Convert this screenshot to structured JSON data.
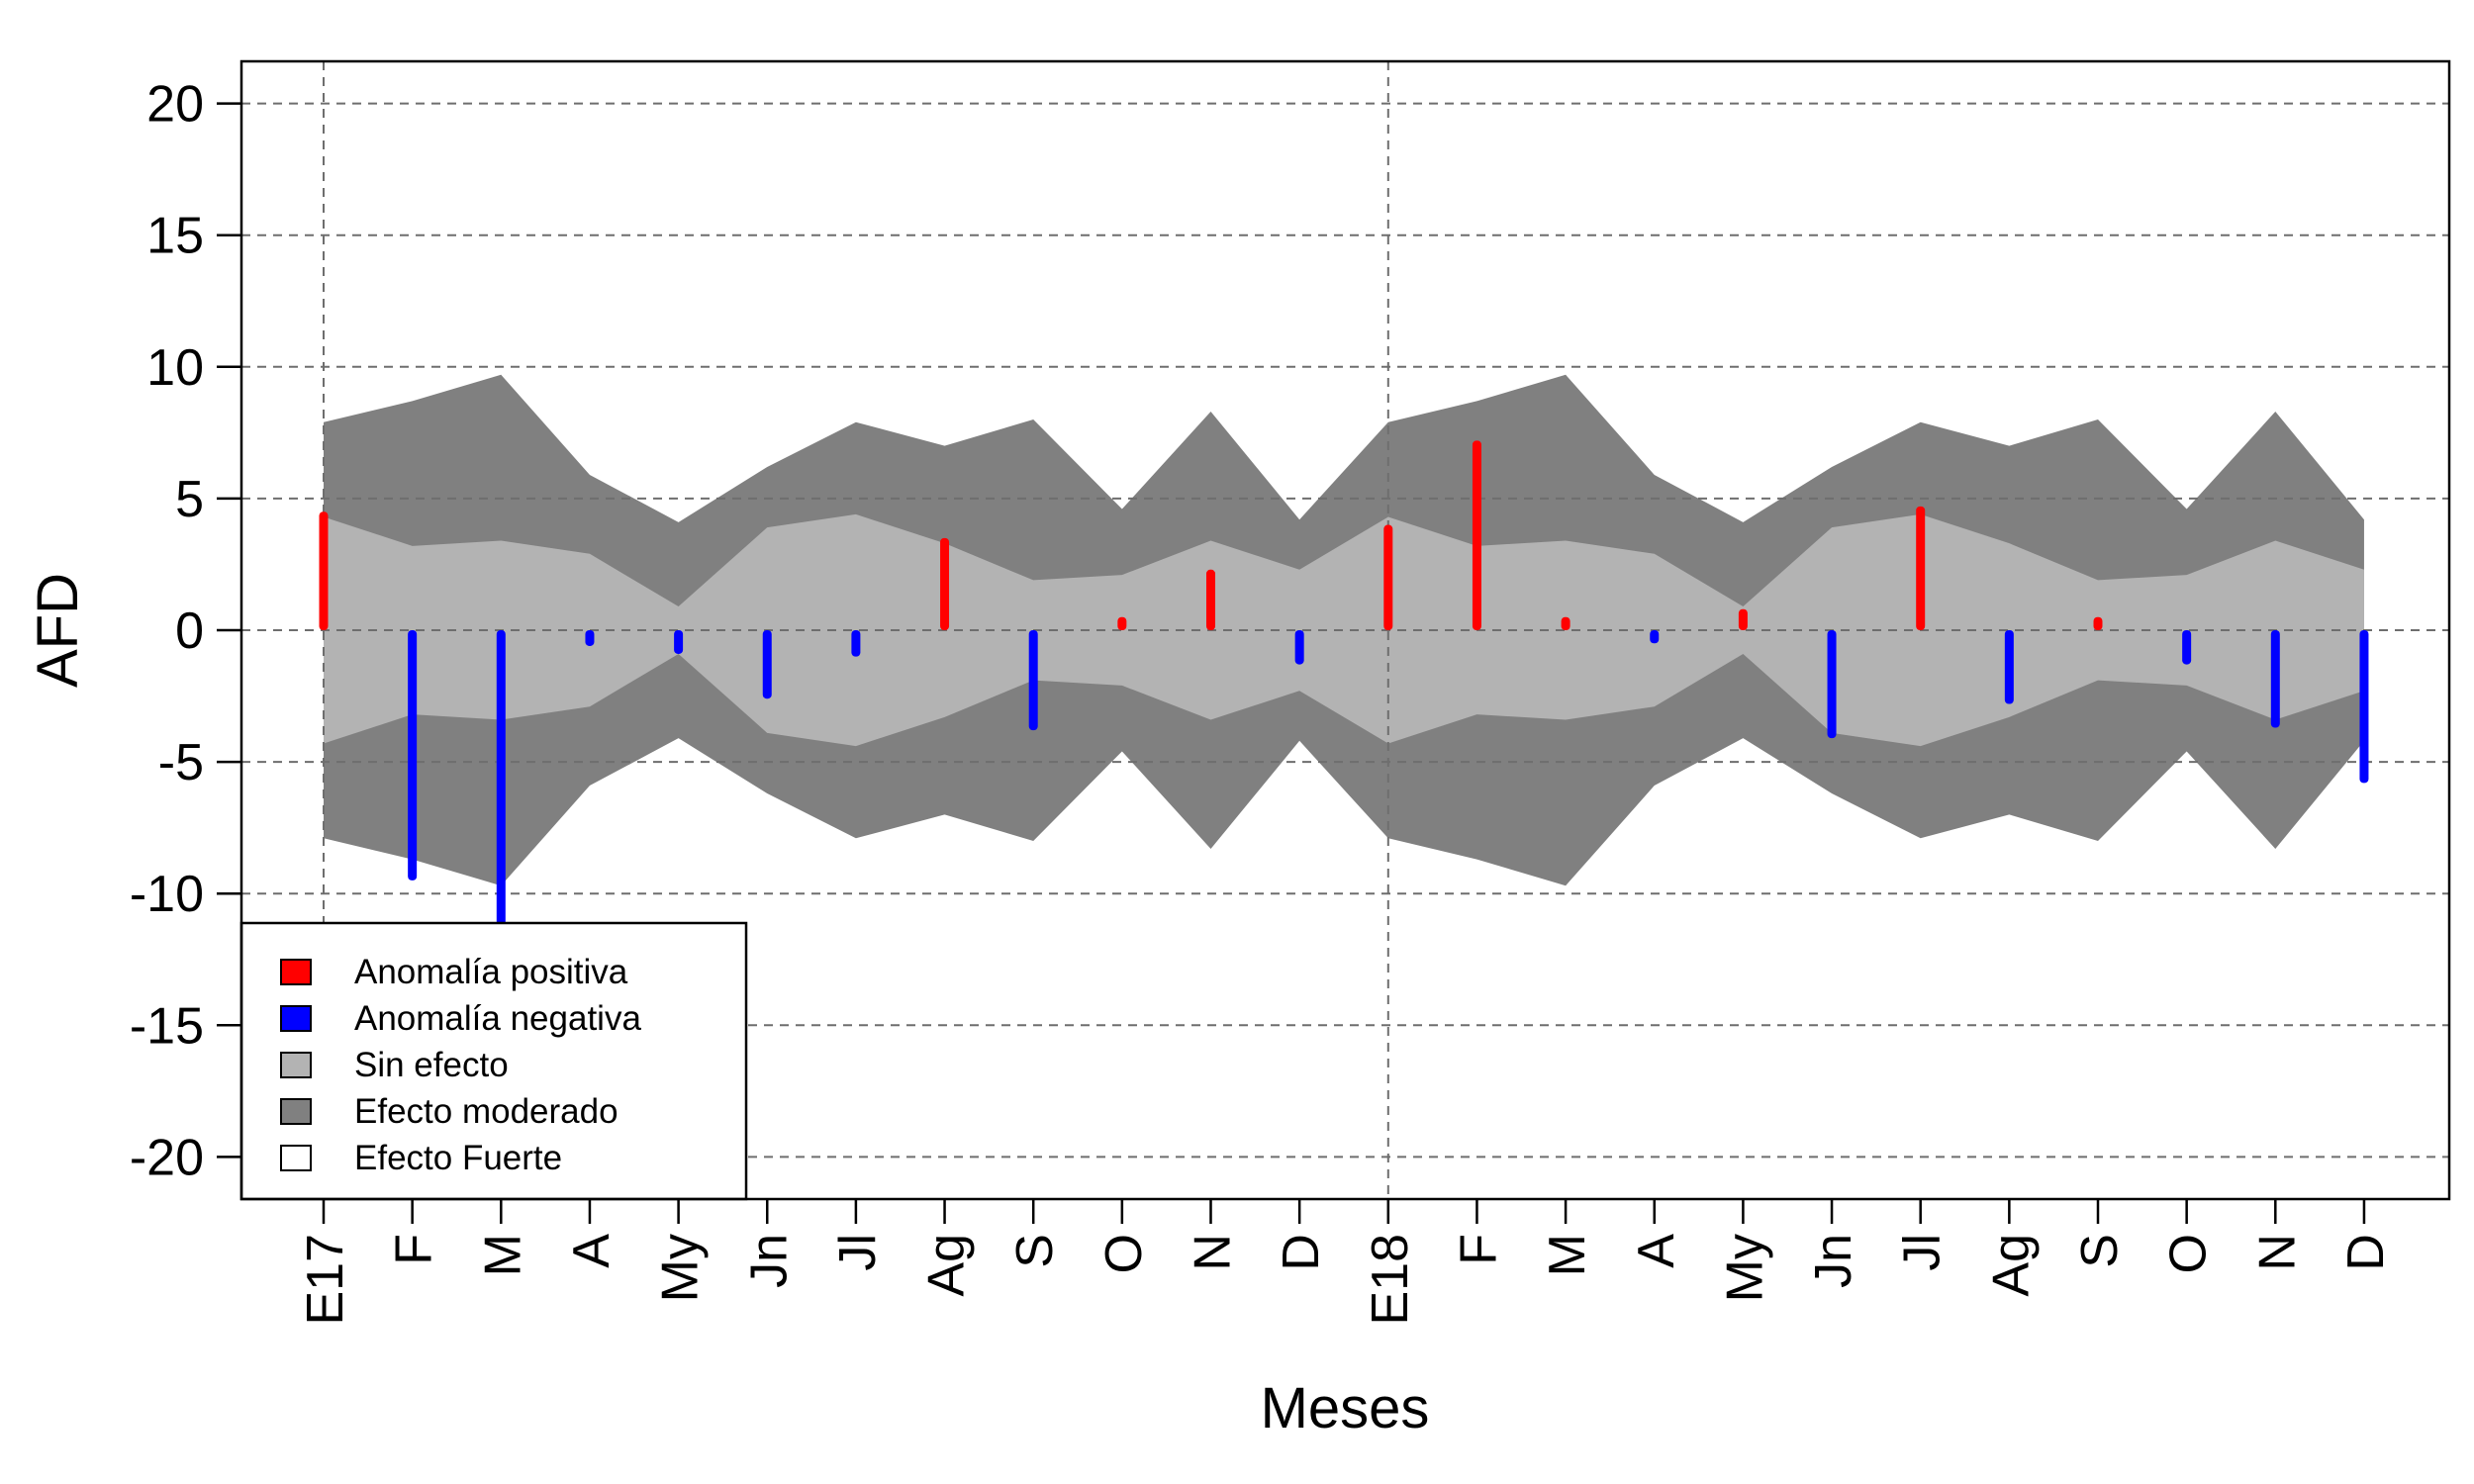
{
  "chart_data": {
    "type": "bar",
    "xlabel": "Meses",
    "ylabel": "AFD",
    "ylim": [
      -21.6,
      21.6
    ],
    "yticks": [
      20,
      15,
      10,
      5,
      0,
      -5,
      -10,
      -15,
      -20
    ],
    "ytick_labels": [
      "20",
      "15",
      "10",
      "5",
      "0",
      "-5",
      "-10",
      "-15",
      "-20"
    ],
    "categories": [
      "E17",
      "F",
      "M",
      "A",
      "My",
      "Jn",
      "Jl",
      "Ag",
      "S",
      "O",
      "N",
      "D",
      "E18",
      "F",
      "M",
      "A",
      "My",
      "Jn",
      "Jl",
      "Ag",
      "S",
      "O",
      "N",
      "D"
    ],
    "values": [
      4.5,
      -9.5,
      -11.2,
      -0.6,
      -0.9,
      -2.6,
      -1.0,
      3.5,
      -3.8,
      0.5,
      2.3,
      -1.3,
      4.0,
      7.2,
      0.5,
      -0.5,
      0.8,
      -4.1,
      4.7,
      -2.8,
      0.5,
      -1.3,
      -3.7,
      -5.8
    ],
    "bands": {
      "sin_efecto": [
        4.3,
        3.2,
        3.4,
        2.9,
        0.9,
        3.9,
        4.4,
        3.3,
        1.9,
        2.1,
        3.4,
        2.3,
        4.3,
        3.2,
        3.4,
        2.9,
        0.9,
        3.9,
        4.4,
        3.3,
        1.9,
        2.1,
        3.4,
        2.3
      ],
      "efecto_moderado": [
        7.9,
        8.7,
        9.7,
        5.9,
        4.1,
        6.2,
        7.9,
        7.0,
        8.0,
        4.6,
        8.3,
        4.2,
        7.9,
        8.7,
        9.7,
        5.9,
        4.1,
        6.2,
        7.9,
        7.0,
        8.0,
        4.6,
        8.3,
        4.2
      ]
    },
    "vertical_reference_lines": [
      "E17",
      "E18"
    ],
    "grid": true,
    "legend_position": "bottom-left",
    "legend": [
      {
        "label": "Anomalía positiva",
        "color": "#ff0000"
      },
      {
        "label": "Anomalía negativa",
        "color": "#0000ff"
      },
      {
        "label": "Sin efecto",
        "color": "#b3b3b3"
      },
      {
        "label": "Efecto moderado",
        "color": "#808080"
      },
      {
        "label": "Efecto Fuerte",
        "color": "#ffffff"
      }
    ],
    "colors": {
      "positive": "#ff0000",
      "negative": "#0000ff",
      "sin_efecto": "#b3b3b3",
      "efecto_moderado": "#808080"
    }
  }
}
